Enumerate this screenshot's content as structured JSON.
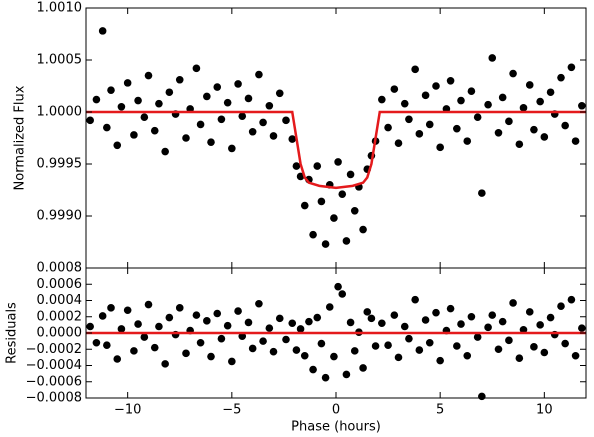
{
  "chart_data": [
    {
      "type": "scatter",
      "ylabel": "Normalized Flux",
      "xlim": [
        -12,
        12
      ],
      "xticks": [
        -10,
        -5,
        0,
        5,
        10
      ],
      "ylim": [
        0.9985,
        1.001
      ],
      "yticks": [
        {
          "value": 0.999,
          "label": "0.9990"
        },
        0.9995,
        {
          "value": 1.0,
          "label": "1.0000"
        },
        1.0005,
        {
          "value": 1.001,
          "label": "1.0010"
        }
      ],
      "series": [
        {
          "style": "points",
          "color": "#000000",
          "x": [
            -11.8,
            -11.5,
            -11.2,
            -11.0,
            -10.8,
            -10.5,
            -10.3,
            -10.0,
            -9.7,
            -9.5,
            -9.2,
            -9.0,
            -8.7,
            -8.5,
            -8.2,
            -8.0,
            -7.7,
            -7.5,
            -7.2,
            -7.0,
            -6.7,
            -6.5,
            -6.2,
            -6.0,
            -5.7,
            -5.5,
            -5.2,
            -5.0,
            -4.7,
            -4.5,
            -4.2,
            -4.0,
            -3.7,
            -3.5,
            -3.2,
            -3.0,
            -2.7,
            -2.4,
            -2.1,
            -1.9,
            -1.7,
            -1.5,
            -1.3,
            -1.1,
            -0.9,
            -0.7,
            -0.5,
            -0.3,
            -0.1,
            0.1,
            0.3,
            0.5,
            0.7,
            0.9,
            1.1,
            1.3,
            1.5,
            1.7,
            1.9,
            2.2,
            2.5,
            2.8,
            3.0,
            3.3,
            3.5,
            3.8,
            4.0,
            4.3,
            4.5,
            4.8,
            5.0,
            5.3,
            5.5,
            5.8,
            6.0,
            6.3,
            6.5,
            6.8,
            7.0,
            7.3,
            7.5,
            7.8,
            8.0,
            8.3,
            8.5,
            8.8,
            9.0,
            9.3,
            9.5,
            9.8,
            10.0,
            10.3,
            10.5,
            10.8,
            11.0,
            11.3,
            11.5,
            11.8
          ],
          "values": [
            0.99992,
            1.00012,
            1.00078,
            0.99985,
            1.00021,
            0.99968,
            1.00005,
            1.00028,
            0.99978,
            1.00011,
            0.99995,
            1.00035,
            0.99982,
            1.00008,
            0.99962,
            1.00019,
            0.99998,
            1.00031,
            0.99975,
            1.00003,
            1.00042,
            0.99988,
            1.00015,
            0.99971,
            1.00024,
            0.99993,
            1.00009,
            0.99965,
            1.00027,
            0.99996,
            1.00013,
            0.99981,
            1.00036,
            0.9999,
            1.00006,
            0.99977,
            1.00018,
            0.99992,
            0.99974,
            0.99948,
            0.99938,
            0.9991,
            0.99935,
            0.99882,
            0.99948,
            0.99914,
            0.99873,
            0.9993,
            0.99898,
            0.99952,
            0.99921,
            0.99876,
            0.9994,
            0.99905,
            0.99928,
            0.99887,
            0.99945,
            0.99958,
            0.99972,
            1.00012,
            0.99985,
            1.00022,
            0.9997,
            1.00008,
            0.99993,
            1.00041,
            0.99979,
            1.00016,
            0.99988,
            1.00025,
            0.99966,
            1.00003,
            1.0003,
            0.99984,
            1.00011,
            0.99972,
            1.0002,
            0.99995,
            0.99922,
            1.00007,
            1.00052,
            0.9998,
            1.00014,
            0.99991,
            1.00037,
            0.99969,
            1.00004,
            1.00026,
            0.99983,
            1.0001,
            0.99976,
            1.00019,
            0.99998,
            1.00033,
            0.99987,
            1.00043,
            0.99972,
            1.00006
          ]
        },
        {
          "style": "line",
          "color": "#e41a1c",
          "x": [
            -12,
            -2.1,
            -1.9,
            -1.7,
            -1.5,
            -1.3,
            -0.8,
            0,
            0.8,
            1.3,
            1.5,
            1.7,
            1.9,
            2.1,
            12
          ],
          "values": [
            1.0,
            1.0,
            0.99975,
            0.9995,
            0.99937,
            0.99932,
            0.99929,
            0.99927,
            0.99929,
            0.99932,
            0.99937,
            0.9995,
            0.99975,
            1.0,
            1.0
          ]
        }
      ]
    },
    {
      "type": "scatter",
      "ylabel": "Residuals",
      "xlabel": "Phase (hours)",
      "xlim": [
        -12,
        12
      ],
      "xticks": [
        {
          "value": -10,
          "label": "−10"
        },
        {
          "value": -5,
          "label": "−5"
        },
        0,
        5,
        10
      ],
      "ylim": [
        -0.0008,
        0.0008
      ],
      "yticks": [
        {
          "value": -0.0008,
          "label": "−0.0008"
        },
        {
          "value": -0.0006,
          "label": "−0.0006"
        },
        {
          "value": -0.0004,
          "label": "−0.0004"
        },
        {
          "value": -0.0002,
          "label": "−0.0002"
        },
        {
          "value": 0,
          "label": "0.0000"
        },
        0.0002,
        0.0004,
        0.0006,
        0.0008
      ],
      "series": [
        {
          "style": "points",
          "color": "#000000",
          "x": [
            -11.8,
            -11.5,
            -11.2,
            -11.0,
            -10.8,
            -10.5,
            -10.3,
            -10.0,
            -9.7,
            -9.5,
            -9.2,
            -9.0,
            -8.7,
            -8.5,
            -8.2,
            -8.0,
            -7.7,
            -7.5,
            -7.2,
            -7.0,
            -6.7,
            -6.5,
            -6.2,
            -6.0,
            -5.7,
            -5.5,
            -5.2,
            -5.0,
            -4.7,
            -4.5,
            -4.2,
            -4.0,
            -3.7,
            -3.5,
            -3.2,
            -3.0,
            -2.7,
            -2.4,
            -2.1,
            -1.9,
            -1.7,
            -1.5,
            -1.3,
            -1.1,
            -0.9,
            -0.7,
            -0.5,
            -0.3,
            -0.1,
            0.1,
            0.3,
            0.5,
            0.7,
            0.9,
            1.1,
            1.3,
            1.5,
            1.7,
            1.9,
            2.2,
            2.5,
            2.8,
            3.0,
            3.3,
            3.5,
            3.8,
            4.0,
            4.3,
            4.5,
            4.8,
            5.0,
            5.3,
            5.5,
            5.8,
            6.0,
            6.3,
            6.5,
            6.8,
            7.0,
            7.3,
            7.5,
            7.8,
            8.0,
            8.3,
            8.5,
            8.8,
            9.0,
            9.3,
            9.5,
            9.8,
            10.0,
            10.3,
            10.5,
            10.8,
            11.0,
            11.3,
            11.5,
            11.8
          ],
          "values": [
            8e-05,
            -0.00012,
            0.00021,
            -0.00015,
            0.00031,
            -0.00032,
            5e-05,
            0.00028,
            -0.00022,
            0.00011,
            -5e-05,
            0.00035,
            -0.00018,
            8e-05,
            -0.00038,
            0.00019,
            -2e-05,
            0.00031,
            -0.00025,
            3e-05,
            0.00022,
            -0.00012,
            0.00015,
            -0.00029,
            0.00024,
            -7e-05,
            9e-05,
            -0.00035,
            0.00027,
            -4e-05,
            0.00013,
            -0.00019,
            0.00036,
            -0.0001,
            6e-05,
            -0.00023,
            0.00018,
            -8e-05,
            0.00012,
            -0.00021,
            5e-05,
            -0.00028,
            0.00014,
            -0.00045,
            0.00019,
            -0.00013,
            -0.00055,
            0.00032,
            -0.00029,
            0.00057,
            0.00048,
            -0.00051,
            0.00013,
            -0.00022,
            1e-05,
            -0.00043,
            0.00026,
            0.00018,
            -0.00016,
            0.00012,
            -0.00015,
            0.00022,
            -0.0003,
            8e-05,
            -7e-05,
            0.00041,
            -0.00021,
            0.00016,
            -0.00012,
            0.00025,
            -0.00034,
            3e-05,
            0.0003,
            -0.00016,
            0.00011,
            -0.00028,
            0.0002,
            -5e-05,
            -0.00078,
            7e-05,
            0.00022,
            -0.0002,
            0.00014,
            -9e-05,
            0.00037,
            -0.00031,
            4e-05,
            0.00026,
            -0.00017,
            0.0001,
            -0.00024,
            0.00019,
            -2e-05,
            0.00033,
            -0.00013,
            0.00041,
            -0.00028,
            6e-05
          ]
        },
        {
          "style": "line",
          "color": "#e41a1c",
          "x": [
            -12,
            12
          ],
          "values": [
            0,
            0
          ]
        }
      ]
    }
  ]
}
